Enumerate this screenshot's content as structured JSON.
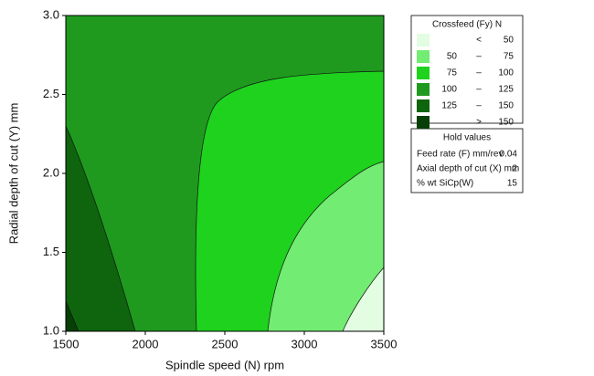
{
  "chart_data": {
    "type": "contour",
    "x_label": "Spindle speed (N) rpm",
    "y_label": "Radial depth of cut (Y) mm",
    "xlim": [
      1500,
      3500
    ],
    "xticks": [
      1500,
      2000,
      2500,
      3000,
      3500
    ],
    "ylim": [
      1.0,
      3.0
    ],
    "yticks": [
      {
        "value": 1.0,
        "label": "1.0"
      },
      {
        "value": 1.5,
        "label": "1.5"
      },
      {
        "value": 2.0,
        "label": "2.0"
      },
      {
        "value": 2.5,
        "label": "2.5"
      },
      {
        "value": 3.0,
        "label": "3.0"
      }
    ],
    "legend_title": "Crossfeed (Fy) N",
    "levels": [
      [
        null,
        "<",
        50
      ],
      [
        50,
        "–",
        75
      ],
      [
        75,
        "–",
        100
      ],
      [
        100,
        "–",
        125
      ],
      [
        125,
        "–",
        150
      ],
      [
        null,
        ">",
        150
      ]
    ],
    "level_colors": [
      "#e2fde2",
      "#72ec72",
      "#1ed21e",
      "#1f9a1f",
      "#0e650e",
      "#064006"
    ],
    "hold_title": "Hold values",
    "hold": [
      [
        "Feed rate (F) mm/rev",
        0.04
      ],
      [
        "Axial depth of cut (X) mm",
        2
      ],
      [
        "% wt SiCp(W)",
        15
      ]
    ]
  }
}
